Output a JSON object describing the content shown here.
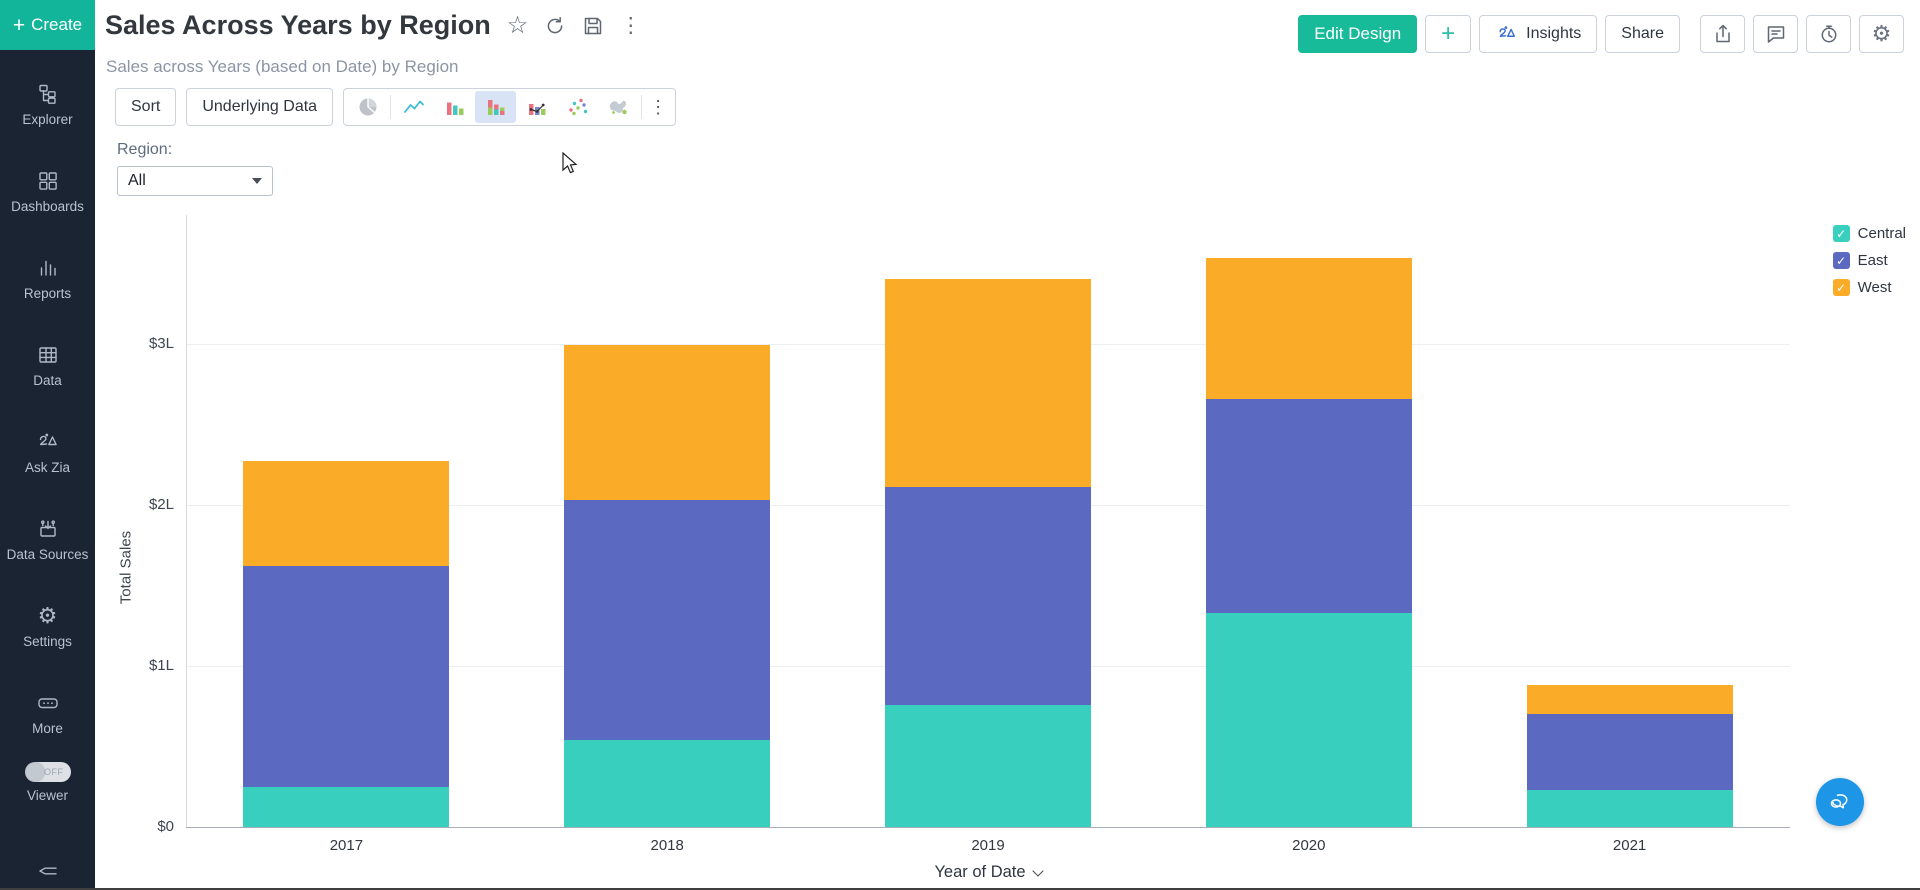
{
  "sidebar": {
    "create_label": "Create",
    "items": [
      {
        "label": "Explorer",
        "icon": "explorer-icon"
      },
      {
        "label": "Dashboards",
        "icon": "dashboards-icon"
      },
      {
        "label": "Reports",
        "icon": "reports-icon"
      },
      {
        "label": "Data",
        "icon": "data-table-icon"
      },
      {
        "label": "Ask Zia",
        "icon": "zia-icon"
      },
      {
        "label": "Data Sources",
        "icon": "data-sources-icon"
      },
      {
        "label": "Settings",
        "icon": "gear-icon"
      },
      {
        "label": "More",
        "icon": "more-icon"
      }
    ],
    "viewer_label": "Viewer",
    "viewer_state": "OFF"
  },
  "header": {
    "title": "Sales Across Years by Region",
    "subtitle": "Sales across Years (based on Date) by Region",
    "edit_design_label": "Edit Design",
    "add_label": "+",
    "insights_label": "Insights",
    "share_label": "Share"
  },
  "toolbar": {
    "sort_label": "Sort",
    "underlying_data_label": "Underlying Data",
    "chart_types": [
      "pie",
      "line",
      "bar",
      "stacked-bar",
      "combo",
      "scatter",
      "map"
    ],
    "selected_chart_type": "stacked-bar"
  },
  "filter": {
    "label": "Region:",
    "value": "All"
  },
  "chart_data": {
    "type": "bar",
    "stacked": true,
    "categories": [
      "2017",
      "2018",
      "2019",
      "2020",
      "2021"
    ],
    "series": [
      {
        "name": "Central",
        "color": "#38CFBF",
        "values": [
          0.25,
          0.54,
          0.76,
          1.33,
          0.23
        ]
      },
      {
        "name": "East",
        "color": "#5B69C1",
        "values": [
          1.37,
          1.49,
          1.35,
          1.33,
          0.47
        ]
      },
      {
        "name": "West",
        "color": "#FAAB27",
        "values": [
          0.65,
          0.96,
          1.29,
          0.87,
          0.18
        ]
      }
    ],
    "unit": "lakh (L)",
    "xlabel": "Year of Date",
    "ylabel": "Total Sales",
    "yticks": [
      {
        "label": "$0",
        "value": 0
      },
      {
        "label": "$1L",
        "value": 1
      },
      {
        "label": "$2L",
        "value": 2
      },
      {
        "label": "$3L",
        "value": 3
      }
    ],
    "ylim": [
      0,
      3.8
    ],
    "grid": true,
    "legend_position": "top-right"
  },
  "colors": {
    "accent_teal": "#17BB9A",
    "sidebar_bg": "#1B2433",
    "selected_chart_type_bg": "#D8E4F6",
    "insights_blue": "#3A6FD8",
    "chat_fab_blue": "#1E96E8"
  }
}
